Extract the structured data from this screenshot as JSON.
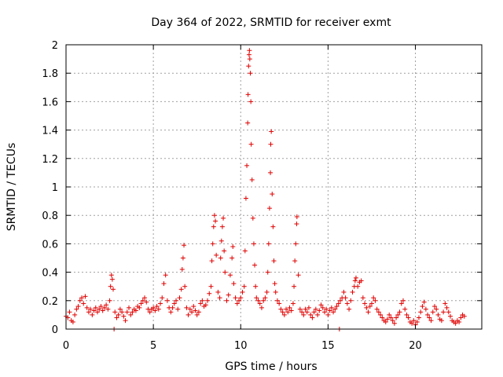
{
  "chart_data": {
    "type": "scatter",
    "title": "Day 364 of 2022, SRMTID for receiver exmt",
    "xlabel": "GPS time / hours",
    "ylabel": "SRMTID / TECUs",
    "xlim": [
      0,
      23.8
    ],
    "ylim": [
      0,
      2
    ],
    "x_ticks": [
      0,
      5,
      10,
      15,
      20
    ],
    "x_tick_labels": [
      "0",
      "5",
      "10",
      "15",
      "20"
    ],
    "y_ticks": [
      0,
      0.2,
      0.4,
      0.6,
      0.8,
      1,
      1.2,
      1.4,
      1.6,
      1.8,
      2
    ],
    "y_tick_labels": [
      "0",
      "0.2",
      "0.4",
      "0.6",
      "0.8",
      "1",
      "1.2",
      "1.4",
      "1.6",
      "1.8",
      "2"
    ],
    "grid": true,
    "marker": "+",
    "series": [
      {
        "name": "SRMTID",
        "color": "#e00000",
        "points": [
          [
            0.0,
            0.09
          ],
          [
            0.1,
            0.08
          ],
          [
            0.2,
            0.12
          ],
          [
            0.3,
            0.06
          ],
          [
            0.4,
            0.05
          ],
          [
            0.5,
            0.1
          ],
          [
            0.6,
            0.14
          ],
          [
            0.7,
            0.16
          ],
          [
            0.8,
            0.2
          ],
          [
            0.9,
            0.22
          ],
          [
            1.0,
            0.18
          ],
          [
            1.1,
            0.23
          ],
          [
            1.2,
            0.15
          ],
          [
            1.3,
            0.12
          ],
          [
            1.4,
            0.14
          ],
          [
            1.5,
            0.1
          ],
          [
            1.6,
            0.13
          ],
          [
            1.7,
            0.15
          ],
          [
            1.8,
            0.12
          ],
          [
            1.9,
            0.14
          ],
          [
            2.0,
            0.16
          ],
          [
            2.1,
            0.13
          ],
          [
            2.2,
            0.15
          ],
          [
            2.3,
            0.17
          ],
          [
            2.4,
            0.14
          ],
          [
            2.5,
            0.2
          ],
          [
            2.55,
            0.3
          ],
          [
            2.6,
            0.38
          ],
          [
            2.65,
            0.35
          ],
          [
            2.7,
            0.28
          ],
          [
            2.75,
            0.0
          ],
          [
            2.8,
            0.12
          ],
          [
            2.9,
            0.08
          ],
          [
            3.0,
            0.1
          ],
          [
            3.1,
            0.14
          ],
          [
            3.2,
            0.12
          ],
          [
            3.3,
            0.09
          ],
          [
            3.4,
            0.06
          ],
          [
            3.5,
            0.12
          ],
          [
            3.6,
            0.15
          ],
          [
            3.7,
            0.1
          ],
          [
            3.8,
            0.12
          ],
          [
            3.9,
            0.14
          ],
          [
            4.0,
            0.13
          ],
          [
            4.1,
            0.16
          ],
          [
            4.2,
            0.15
          ],
          [
            4.3,
            0.18
          ],
          [
            4.4,
            0.2
          ],
          [
            4.5,
            0.22
          ],
          [
            4.6,
            0.19
          ],
          [
            4.7,
            0.14
          ],
          [
            4.8,
            0.12
          ],
          [
            4.9,
            0.14
          ],
          [
            5.0,
            0.15
          ],
          [
            5.1,
            0.13
          ],
          [
            5.2,
            0.16
          ],
          [
            5.3,
            0.14
          ],
          [
            5.4,
            0.18
          ],
          [
            5.5,
            0.22
          ],
          [
            5.6,
            0.32
          ],
          [
            5.7,
            0.38
          ],
          [
            5.8,
            0.2
          ],
          [
            5.9,
            0.15
          ],
          [
            6.0,
            0.12
          ],
          [
            6.1,
            0.15
          ],
          [
            6.2,
            0.18
          ],
          [
            6.3,
            0.2
          ],
          [
            6.4,
            0.14
          ],
          [
            6.5,
            0.22
          ],
          [
            6.6,
            0.28
          ],
          [
            6.65,
            0.42
          ],
          [
            6.7,
            0.5
          ],
          [
            6.75,
            0.59
          ],
          [
            6.8,
            0.3
          ],
          [
            6.9,
            0.15
          ],
          [
            7.0,
            0.1
          ],
          [
            7.1,
            0.14
          ],
          [
            7.2,
            0.12
          ],
          [
            7.3,
            0.16
          ],
          [
            7.4,
            0.13
          ],
          [
            7.5,
            0.1
          ],
          [
            7.6,
            0.12
          ],
          [
            7.7,
            0.18
          ],
          [
            7.8,
            0.2
          ],
          [
            7.9,
            0.16
          ],
          [
            8.0,
            0.17
          ],
          [
            8.1,
            0.2
          ],
          [
            8.2,
            0.25
          ],
          [
            8.3,
            0.3
          ],
          [
            8.35,
            0.48
          ],
          [
            8.4,
            0.6
          ],
          [
            8.45,
            0.72
          ],
          [
            8.5,
            0.8
          ],
          [
            8.55,
            0.76
          ],
          [
            8.6,
            0.52
          ],
          [
            8.7,
            0.26
          ],
          [
            8.8,
            0.22
          ],
          [
            8.85,
            0.5
          ],
          [
            8.9,
            0.62
          ],
          [
            8.95,
            0.72
          ],
          [
            9.0,
            0.78
          ],
          [
            9.05,
            0.55
          ],
          [
            9.1,
            0.4
          ],
          [
            9.2,
            0.2
          ],
          [
            9.3,
            0.24
          ],
          [
            9.4,
            0.38
          ],
          [
            9.5,
            0.5
          ],
          [
            9.55,
            0.58
          ],
          [
            9.6,
            0.32
          ],
          [
            9.7,
            0.22
          ],
          [
            9.8,
            0.18
          ],
          [
            9.9,
            0.2
          ],
          [
            10.0,
            0.22
          ],
          [
            10.1,
            0.26
          ],
          [
            10.2,
            0.3
          ],
          [
            10.25,
            0.55
          ],
          [
            10.3,
            0.92
          ],
          [
            10.35,
            1.15
          ],
          [
            10.4,
            1.45
          ],
          [
            10.42,
            1.65
          ],
          [
            10.45,
            1.85
          ],
          [
            10.48,
            1.93
          ],
          [
            10.5,
            1.96
          ],
          [
            10.52,
            1.9
          ],
          [
            10.55,
            1.8
          ],
          [
            10.58,
            1.6
          ],
          [
            10.6,
            1.3
          ],
          [
            10.65,
            1.05
          ],
          [
            10.7,
            0.78
          ],
          [
            10.75,
            0.6
          ],
          [
            10.8,
            0.45
          ],
          [
            10.85,
            0.3
          ],
          [
            10.9,
            0.22
          ],
          [
            11.0,
            0.2
          ],
          [
            11.1,
            0.18
          ],
          [
            11.2,
            0.15
          ],
          [
            11.3,
            0.2
          ],
          [
            11.4,
            0.22
          ],
          [
            11.5,
            0.26
          ],
          [
            11.55,
            0.4
          ],
          [
            11.6,
            0.6
          ],
          [
            11.65,
            0.85
          ],
          [
            11.7,
            1.1
          ],
          [
            11.72,
            1.3
          ],
          [
            11.75,
            1.39
          ],
          [
            11.8,
            0.95
          ],
          [
            11.85,
            0.72
          ],
          [
            11.9,
            0.48
          ],
          [
            11.95,
            0.32
          ],
          [
            12.0,
            0.26
          ],
          [
            12.1,
            0.2
          ],
          [
            12.2,
            0.18
          ],
          [
            12.3,
            0.14
          ],
          [
            12.4,
            0.12
          ],
          [
            12.5,
            0.1
          ],
          [
            12.6,
            0.14
          ],
          [
            12.7,
            0.12
          ],
          [
            12.8,
            0.15
          ],
          [
            12.9,
            0.13
          ],
          [
            13.0,
            0.18
          ],
          [
            13.05,
            0.3
          ],
          [
            13.1,
            0.48
          ],
          [
            13.15,
            0.6
          ],
          [
            13.2,
            0.74
          ],
          [
            13.22,
            0.79
          ],
          [
            13.3,
            0.38
          ],
          [
            13.4,
            0.14
          ],
          [
            13.5,
            0.12
          ],
          [
            13.6,
            0.1
          ],
          [
            13.7,
            0.14
          ],
          [
            13.8,
            0.12
          ],
          [
            13.9,
            0.15
          ],
          [
            14.0,
            0.1
          ],
          [
            14.1,
            0.08
          ],
          [
            14.2,
            0.12
          ],
          [
            14.3,
            0.14
          ],
          [
            14.4,
            0.1
          ],
          [
            14.5,
            0.13
          ],
          [
            14.6,
            0.17
          ],
          [
            14.7,
            0.15
          ],
          [
            14.8,
            0.12
          ],
          [
            14.9,
            0.14
          ],
          [
            15.0,
            0.1
          ],
          [
            15.1,
            0.13
          ],
          [
            15.2,
            0.15
          ],
          [
            15.3,
            0.12
          ],
          [
            15.4,
            0.14
          ],
          [
            15.5,
            0.16
          ],
          [
            15.6,
            0.18
          ],
          [
            15.65,
            0.0
          ],
          [
            15.7,
            0.2
          ],
          [
            15.8,
            0.22
          ],
          [
            15.9,
            0.26
          ],
          [
            16.0,
            0.22
          ],
          [
            16.1,
            0.18
          ],
          [
            16.2,
            0.14
          ],
          [
            16.3,
            0.2
          ],
          [
            16.4,
            0.26
          ],
          [
            16.5,
            0.3
          ],
          [
            16.55,
            0.34
          ],
          [
            16.6,
            0.36
          ],
          [
            16.7,
            0.3
          ],
          [
            16.8,
            0.33
          ],
          [
            16.9,
            0.34
          ],
          [
            17.0,
            0.22
          ],
          [
            17.1,
            0.18
          ],
          [
            17.2,
            0.15
          ],
          [
            17.3,
            0.12
          ],
          [
            17.4,
            0.16
          ],
          [
            17.5,
            0.18
          ],
          [
            17.6,
            0.22
          ],
          [
            17.7,
            0.2
          ],
          [
            17.8,
            0.14
          ],
          [
            17.9,
            0.12
          ],
          [
            18.0,
            0.1
          ],
          [
            18.1,
            0.08
          ],
          [
            18.2,
            0.06
          ],
          [
            18.3,
            0.05
          ],
          [
            18.4,
            0.07
          ],
          [
            18.5,
            0.1
          ],
          [
            18.6,
            0.08
          ],
          [
            18.7,
            0.06
          ],
          [
            18.8,
            0.04
          ],
          [
            18.9,
            0.08
          ],
          [
            19.0,
            0.1
          ],
          [
            19.1,
            0.12
          ],
          [
            19.2,
            0.18
          ],
          [
            19.3,
            0.2
          ],
          [
            19.4,
            0.14
          ],
          [
            19.5,
            0.1
          ],
          [
            19.6,
            0.08
          ],
          [
            19.7,
            0.05
          ],
          [
            19.8,
            0.04
          ],
          [
            19.9,
            0.06
          ],
          [
            20.0,
            0.03
          ],
          [
            20.1,
            0.05
          ],
          [
            20.2,
            0.08
          ],
          [
            20.3,
            0.12
          ],
          [
            20.4,
            0.16
          ],
          [
            20.5,
            0.19
          ],
          [
            20.6,
            0.14
          ],
          [
            20.7,
            0.1
          ],
          [
            20.8,
            0.08
          ],
          [
            20.9,
            0.06
          ],
          [
            21.0,
            0.12
          ],
          [
            21.1,
            0.16
          ],
          [
            21.2,
            0.14
          ],
          [
            21.3,
            0.1
          ],
          [
            21.4,
            0.07
          ],
          [
            21.5,
            0.06
          ],
          [
            21.6,
            0.12
          ],
          [
            21.7,
            0.18
          ],
          [
            21.8,
            0.15
          ],
          [
            21.9,
            0.12
          ],
          [
            22.0,
            0.09
          ],
          [
            22.1,
            0.06
          ],
          [
            22.2,
            0.05
          ],
          [
            22.3,
            0.04
          ],
          [
            22.4,
            0.06
          ],
          [
            22.5,
            0.05
          ],
          [
            22.6,
            0.08
          ],
          [
            22.7,
            0.1
          ],
          [
            22.8,
            0.09
          ]
        ]
      }
    ]
  }
}
